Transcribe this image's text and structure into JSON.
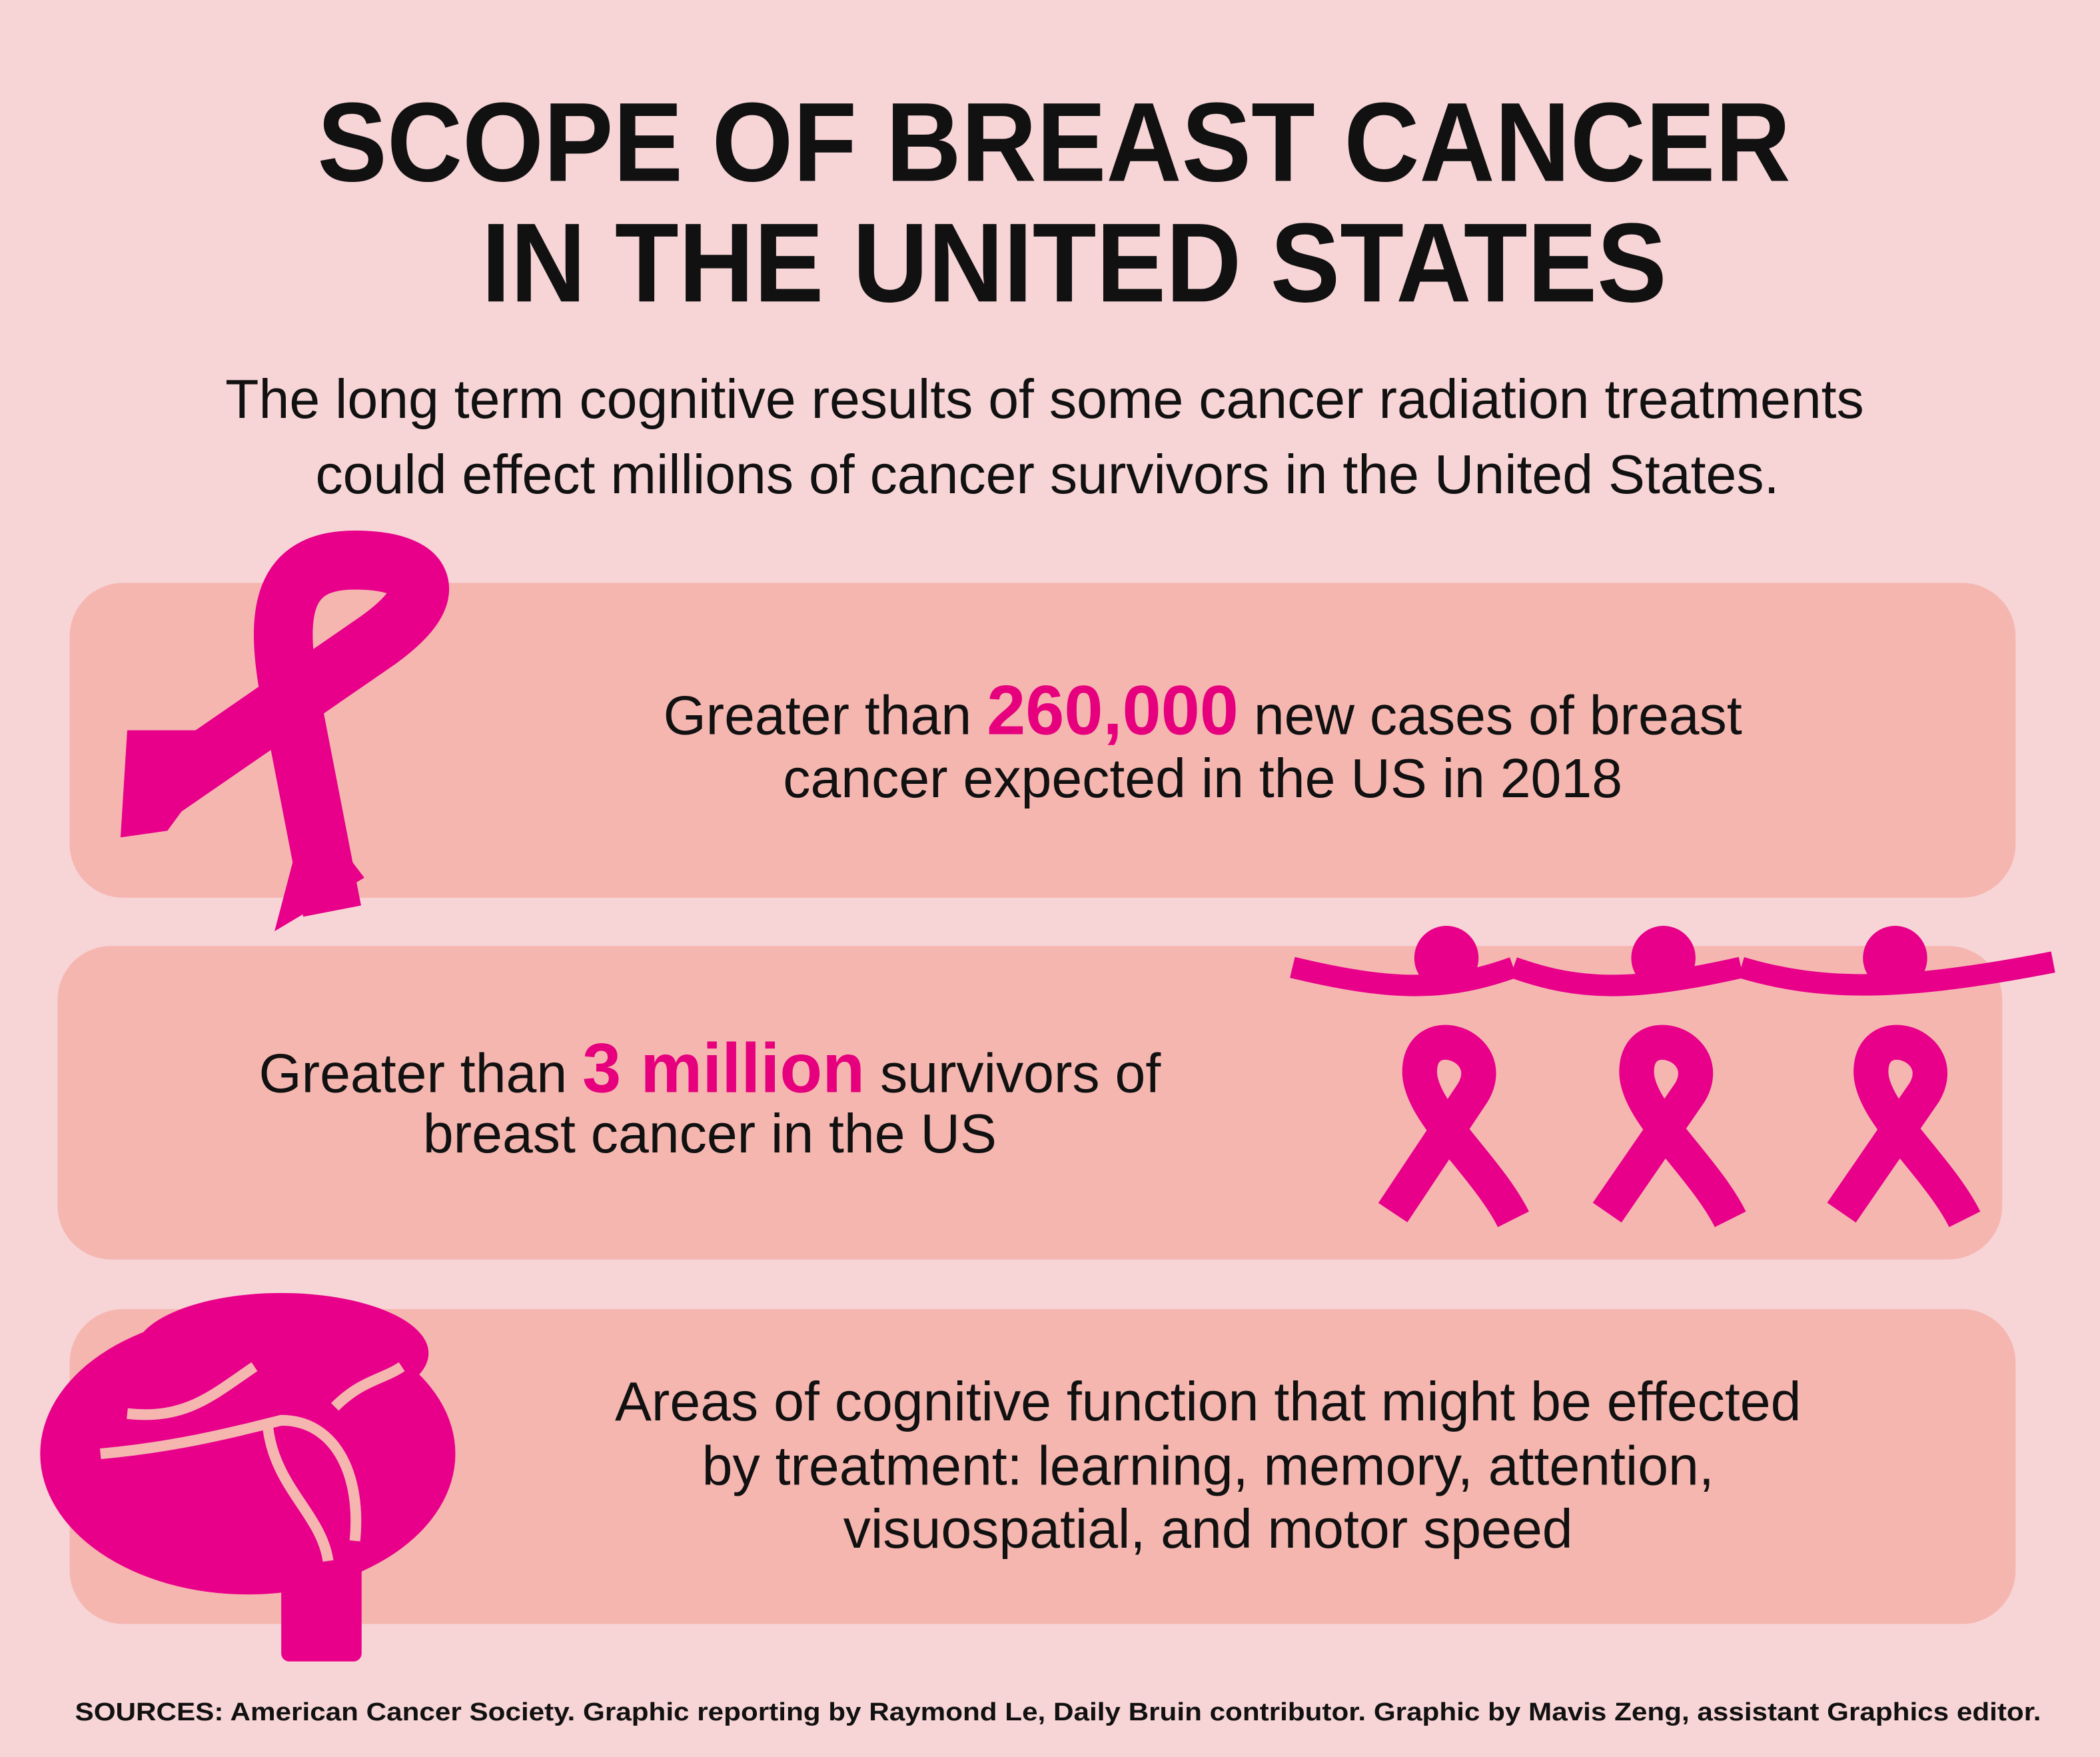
{
  "title": [
    "SCOPE OF BREAST CANCER",
    "IN THE UNITED STATES"
  ],
  "subtitle": [
    "The long term cognitive results of some cancer radiation treatments",
    "could effect millions of cancer survivors in the United States."
  ],
  "panels": [
    {
      "first_line": {
        "before": "Greater than",
        "highlight": "260,000",
        "after": "new cases of breast"
      },
      "other_lines": [
        "cancer expected in the US in 2018"
      ]
    },
    {
      "first_line": {
        "before": "Greater than",
        "highlight": "3 million",
        "after": "survivors of"
      },
      "other_lines": [
        "breast cancer in the US"
      ]
    },
    {
      "lines": [
        "Areas of cognitive function that might be effected",
        "by treatment: learning, memory, attention,",
        "visuospatial, and motor speed"
      ]
    }
  ],
  "sources": "SOURCES: American Cancer Society. Graphic reporting by Raymond Le, Daily Bruin contributor. Graphic by Mavis Zeng, assistant Graphics editor."
}
